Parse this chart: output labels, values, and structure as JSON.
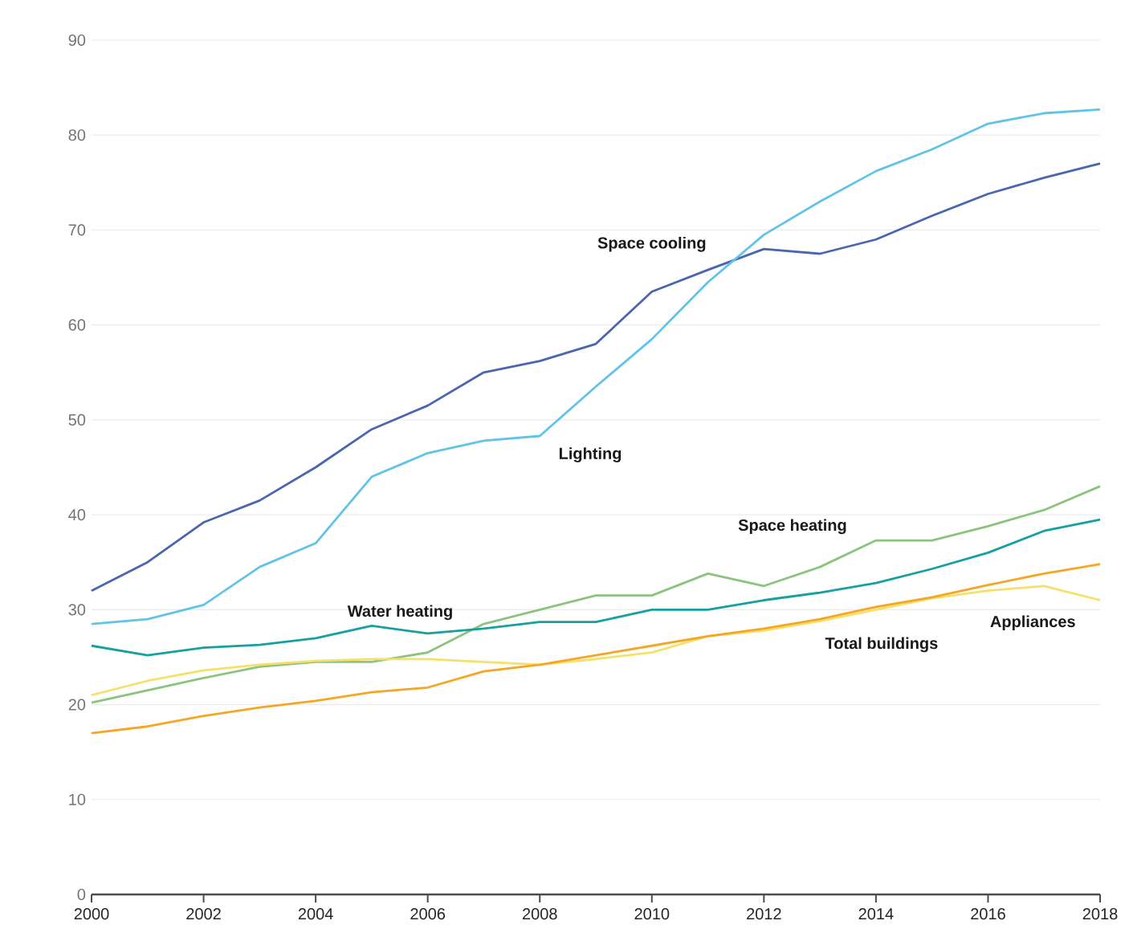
{
  "chart_data": {
    "type": "line",
    "x": [
      2000,
      2001,
      2002,
      2003,
      2004,
      2005,
      2006,
      2007,
      2008,
      2009,
      2010,
      2011,
      2012,
      2013,
      2014,
      2015,
      2016,
      2017,
      2018
    ],
    "series": [
      {
        "name": "Space cooling",
        "color": "#4a66b0",
        "values": [
          32,
          35,
          39.2,
          41.5,
          45,
          49,
          51.5,
          55,
          56.2,
          58,
          63.5,
          65.8,
          68,
          67.5,
          69,
          71.5,
          73.8,
          75.5,
          77
        ]
      },
      {
        "name": "Lighting",
        "color": "#62c3e8",
        "values": [
          28.5,
          29,
          30.5,
          34.5,
          37,
          44,
          46.5,
          47.8,
          48.3,
          53.5,
          58.5,
          64.5,
          69.5,
          73,
          76.2,
          78.5,
          81.2,
          82.3,
          82.7
        ]
      },
      {
        "name": "Space heating",
        "color": "#8cc47e",
        "values": [
          20.2,
          21.5,
          22.8,
          24,
          24.5,
          24.5,
          25.5,
          28.5,
          30,
          31.5,
          31.5,
          33.8,
          32.5,
          34.5,
          37.3,
          37.3,
          38.8,
          40.5,
          43
        ]
      },
      {
        "name": "Water heating",
        "color": "#16a0a0",
        "values": [
          26.2,
          25.2,
          26,
          26.3,
          27,
          28.3,
          27.5,
          28,
          28.7,
          28.7,
          30,
          30,
          31,
          31.8,
          32.8,
          34.3,
          36,
          38.3,
          39.5
        ]
      },
      {
        "name": "Appliances",
        "color": "#f5e06a",
        "values": [
          21,
          22.5,
          23.6,
          24.2,
          24.6,
          24.8,
          24.8,
          24.5,
          24.2,
          24.8,
          25.5,
          27.2,
          27.8,
          28.8,
          30,
          31.2,
          32,
          32.5,
          31
        ]
      },
      {
        "name": "Total buildings",
        "color": "#f5a623",
        "values": [
          17,
          17.7,
          18.8,
          19.7,
          20.4,
          21.3,
          21.8,
          23.5,
          24.2,
          25.2,
          26.2,
          27.2,
          28,
          29,
          30.3,
          31.3,
          32.6,
          33.8,
          34.8
        ]
      }
    ],
    "xlim": [
      2000,
      2018
    ],
    "ylim": [
      0,
      90
    ],
    "xticks": [
      2000,
      2002,
      2004,
      2006,
      2008,
      2010,
      2012,
      2014,
      2016,
      2018
    ],
    "yticks": [
      0,
      10,
      20,
      30,
      40,
      50,
      60,
      70,
      80,
      90
    ],
    "grid": "y",
    "marker": "none",
    "line_style": "solid",
    "legend": false
  }
}
